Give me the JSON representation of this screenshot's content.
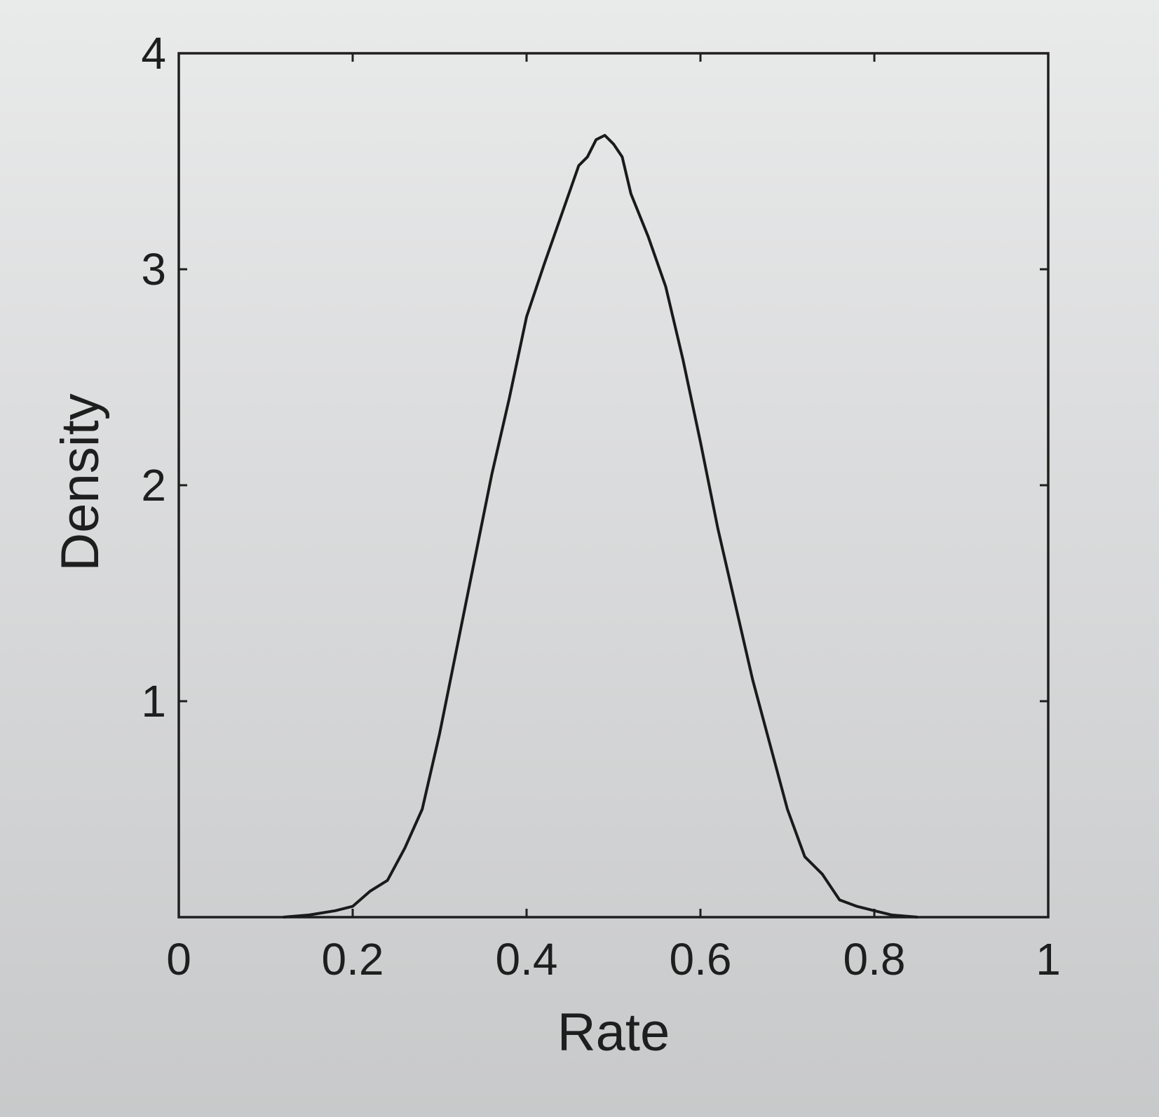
{
  "chart_data": {
    "type": "line",
    "title": "",
    "xlabel": "Rate",
    "ylabel": "Density",
    "xlim": [
      0,
      1
    ],
    "ylim": [
      0,
      4
    ],
    "xticks": [
      0,
      0.2,
      0.4,
      0.6,
      0.8,
      1
    ],
    "xtick_labels": [
      "0",
      "0.2",
      "0.4",
      "0.6",
      "0.8",
      "1"
    ],
    "yticks": [
      1,
      2,
      3,
      4
    ],
    "ytick_labels": [
      "1",
      "2",
      "3",
      "4"
    ],
    "grid": false,
    "legend": "none",
    "line_color": "#1a1a1a",
    "series": [
      {
        "x": [
          0.12,
          0.15,
          0.18,
          0.2,
          0.22,
          0.24,
          0.26,
          0.28,
          0.3,
          0.32,
          0.34,
          0.36,
          0.38,
          0.4,
          0.42,
          0.44,
          0.46,
          0.47,
          0.48,
          0.49,
          0.5,
          0.51,
          0.52,
          0.54,
          0.56,
          0.58,
          0.6,
          0.62,
          0.64,
          0.66,
          0.68,
          0.7,
          0.72,
          0.74,
          0.76,
          0.78,
          0.8,
          0.82,
          0.85
        ],
        "y": [
          0.0,
          0.01,
          0.03,
          0.05,
          0.12,
          0.17,
          0.32,
          0.5,
          0.85,
          1.25,
          1.65,
          2.05,
          2.4,
          2.78,
          3.02,
          3.25,
          3.48,
          3.52,
          3.6,
          3.62,
          3.58,
          3.52,
          3.35,
          3.15,
          2.92,
          2.58,
          2.2,
          1.8,
          1.45,
          1.1,
          0.8,
          0.5,
          0.28,
          0.2,
          0.08,
          0.05,
          0.03,
          0.01,
          0.0
        ]
      }
    ]
  }
}
